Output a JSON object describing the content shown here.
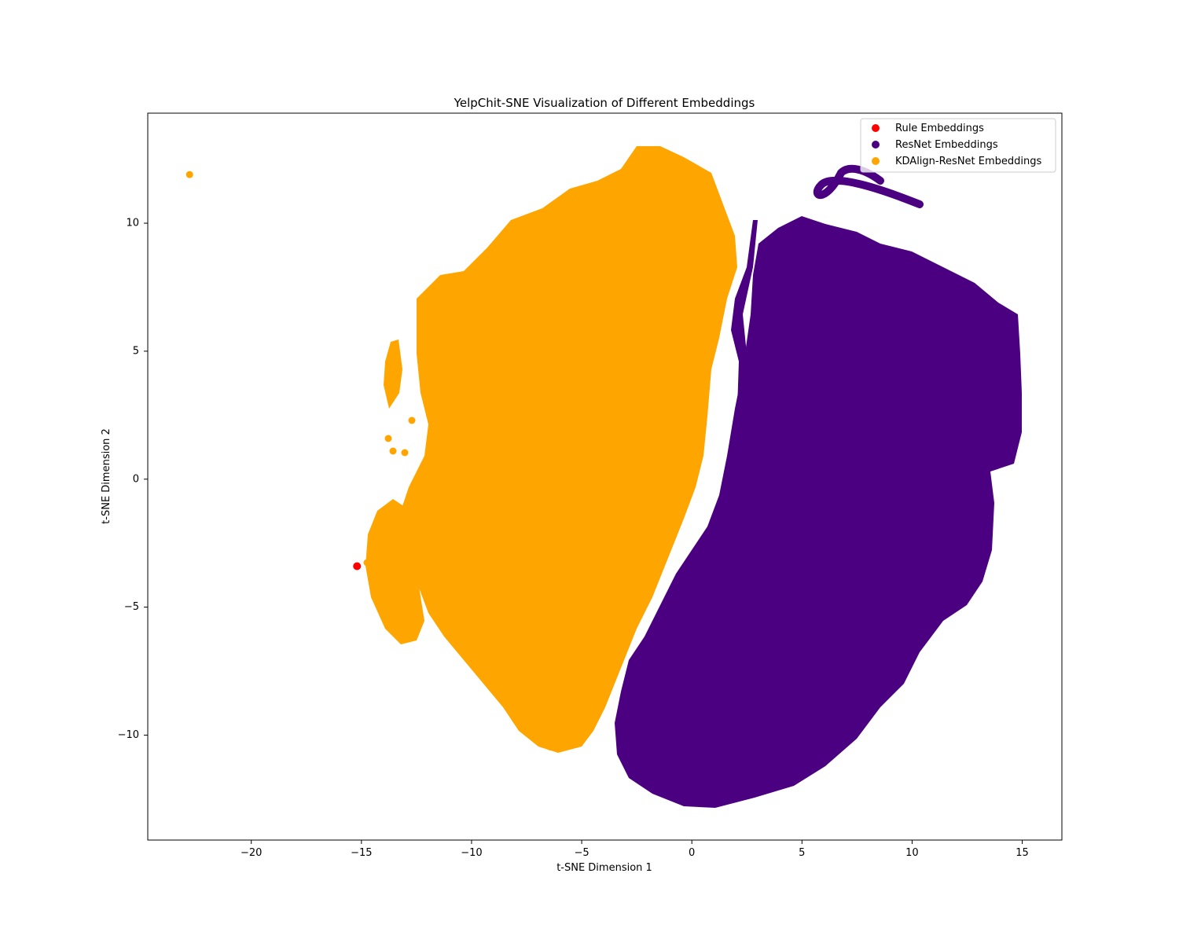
{
  "chart_data": {
    "type": "scatter",
    "title": "YelpChit-SNE Visualization of Different Embeddings",
    "xlabel": "t-SNE Dimension 1",
    "ylabel": "t-SNE Dimension 2",
    "xlim": [
      -24.7,
      16.8
    ],
    "ylim": [
      -14.1,
      14.3
    ],
    "xticks": [
      -20,
      -15,
      -10,
      -5,
      0,
      5,
      10,
      15
    ],
    "yticks": [
      -10,
      -5,
      0,
      5,
      10
    ],
    "xtick_labels": [
      "−20",
      "−15",
      "−10",
      "−5",
      "0",
      "5",
      "10",
      "15"
    ],
    "ytick_labels": [
      "−10",
      "−5",
      "0",
      "5",
      "10"
    ],
    "legend_position": "top-right",
    "grid": false,
    "series": [
      {
        "name": "Rule Embeddings",
        "color": "#ff0000",
        "points": [
          [
            -15.2,
            -3.4
          ]
        ]
      },
      {
        "name": "ResNet Embeddings",
        "color": "#4b0082",
        "points": [
          [
            3.5,
            9.8
          ],
          [
            6,
            10.2
          ],
          [
            8,
            9.4
          ],
          [
            11,
            8.5
          ],
          [
            13,
            7.5
          ],
          [
            14.8,
            6.5
          ],
          [
            15,
            3
          ],
          [
            15,
            0.6
          ],
          [
            13,
            -0.5
          ],
          [
            13.5,
            -2.5
          ],
          [
            13,
            -5
          ],
          [
            11,
            -7
          ],
          [
            9,
            -9.5
          ],
          [
            7,
            -12
          ],
          [
            4,
            -12.7
          ],
          [
            1,
            -12.9
          ],
          [
            -2,
            -12.3
          ],
          [
            -3,
            -10.5
          ],
          [
            -3,
            -8
          ],
          [
            -1,
            -6
          ],
          [
            1,
            -4
          ],
          [
            2.5,
            -2
          ],
          [
            2.8,
            2
          ],
          [
            2.8,
            6
          ],
          [
            6.8,
            12
          ],
          [
            10.5,
            10.7
          ]
        ],
        "shape": "dense cluster (right), ~ x 1.5 to 15, y -12.9 to 12"
      },
      {
        "name": "KDAlign-ResNet Embeddings",
        "color": "#ffa500",
        "points": [
          [
            -22.8,
            11.9
          ],
          [
            -12.5,
            7
          ],
          [
            -10,
            8.2
          ],
          [
            -8,
            10
          ],
          [
            -6,
            10.7
          ],
          [
            -3,
            12.5
          ],
          [
            -1.5,
            13
          ],
          [
            0.5,
            11
          ],
          [
            2,
            9
          ],
          [
            1.8,
            6
          ],
          [
            1,
            2
          ],
          [
            0.5,
            0
          ],
          [
            -1,
            -3
          ],
          [
            -2.5,
            -6
          ],
          [
            -4,
            -9
          ],
          [
            -5,
            -10.6
          ],
          [
            -6.5,
            -10.6
          ],
          [
            -8,
            -9
          ],
          [
            -10,
            -7.5
          ],
          [
            -12,
            -6.5
          ],
          [
            -13.5,
            -6.5
          ],
          [
            -14.5,
            -5
          ],
          [
            -14.5,
            -2
          ],
          [
            -13.5,
            -1
          ],
          [
            -12.5,
            0
          ],
          [
            -12.5,
            3
          ],
          [
            -13.5,
            5.2
          ]
        ],
        "shape": "dense cluster (left), ~ x -14.9 to 2, y -10.7 to 13, plus outlier at (-22.8, 11.9)"
      }
    ]
  }
}
